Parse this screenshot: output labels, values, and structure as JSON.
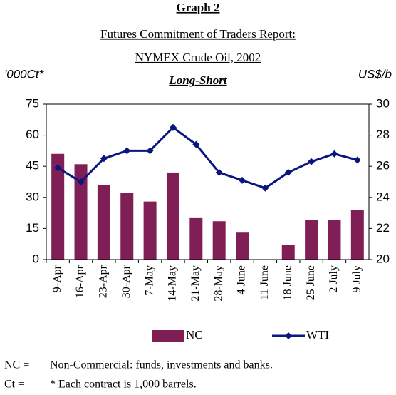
{
  "chart_data": {
    "type": "bar_line",
    "title": "Graph 2",
    "subtitle": [
      "Futures Commitment of Traders Report:",
      "NYMEX Crude Oil, 2002"
    ],
    "subheading": "Long-Short",
    "ylabel": "'000Ct*",
    "y2label": "US$/b",
    "categories": [
      "9-Apr",
      "16-Apr",
      "23-Apr",
      "30-Apr",
      "7-May",
      "14-May",
      "21-May",
      "28-May",
      "4 June",
      "11 June",
      "18 June",
      "25 June",
      "2 July",
      "9 July"
    ],
    "series": [
      {
        "name": "NC",
        "type": "bar",
        "color": "#7f1f55",
        "values": [
          51,
          46,
          36,
          32,
          28,
          42,
          20,
          18.5,
          13,
          0,
          7,
          19,
          19,
          24
        ]
      },
      {
        "name": "WTI",
        "type": "line",
        "axis": "y2",
        "color": "#0b1580",
        "values": [
          25.9,
          25.0,
          26.5,
          27.0,
          27.0,
          28.5,
          27.4,
          25.6,
          25.1,
          24.6,
          25.6,
          26.3,
          26.8,
          26.4
        ]
      }
    ],
    "ylim": [
      0,
      75
    ],
    "yticks": [
      0,
      15,
      30,
      45,
      60,
      75
    ],
    "y2lim": [
      20,
      30
    ],
    "y2ticks": [
      20,
      22,
      24,
      26,
      28,
      30
    ],
    "legend": "bottom"
  },
  "notes": [
    {
      "key": "NC =",
      "text": "Non-Commercial: funds, investments and banks."
    },
    {
      "key": "Ct =",
      "text": "* Each contract is 1,000 barrels."
    }
  ]
}
